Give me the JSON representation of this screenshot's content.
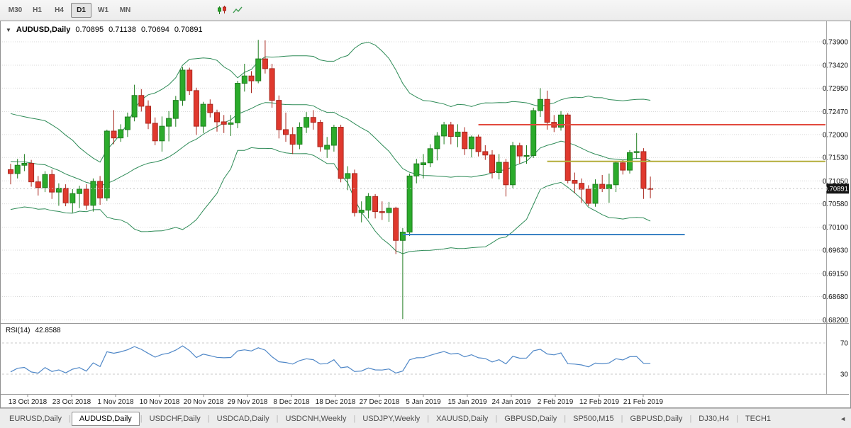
{
  "icons": {
    "collapse": "▼",
    "tab_scroll_left": "◄"
  },
  "toolbar": {
    "timeframes": [
      {
        "label": "M30",
        "active": false
      },
      {
        "label": "H1",
        "active": false
      },
      {
        "label": "H4",
        "active": false
      },
      {
        "label": "D1",
        "active": true
      },
      {
        "label": "W1",
        "active": false
      },
      {
        "label": "MN",
        "active": false
      }
    ],
    "icon_names": [
      "candlestick-chart-icon",
      "indicators-icon"
    ]
  },
  "chart": {
    "title": {
      "symbol": "AUDUSD,Daily",
      "o": "0.70895",
      "h": "0.71138",
      "l": "0.70694",
      "c": "0.70891"
    },
    "price_axis": {
      "labels": [
        "0.73900",
        "0.73420",
        "0.72950",
        "0.72470",
        "0.72000",
        "0.71530",
        "0.71050",
        "0.70580",
        "0.70100",
        "0.69630",
        "0.69150",
        "0.68680",
        "0.68200"
      ],
      "top": 0.739,
      "bottom": 0.682,
      "badge": "0.70891",
      "badge_price": 0.70891
    },
    "time_axis": {
      "labels": [
        "13 Oct 2018",
        "23 Oct 2018",
        "1 Nov 2018",
        "10 Nov 2018",
        "20 Nov 2018",
        "29 Nov 2018",
        "8 Dec 2018",
        "18 Dec 2018",
        "27 Dec 2018",
        "5 Jan 2019",
        "15 Jan 2019",
        "24 Jan 2019",
        "2 Feb 2019",
        "12 Feb 2019",
        "21 Feb 2019"
      ]
    },
    "lines": [
      {
        "name": "resistance-line-red",
        "color": "#e2493d",
        "price": 0.722,
        "from_bar": 68,
        "to_bar": null,
        "width": 2
      },
      {
        "name": "level-line-yellow",
        "color": "#b4ae3a",
        "price": 0.7145,
        "from_bar": 78,
        "to_bar": null,
        "width": 2
      },
      {
        "name": "support-line-blue",
        "color": "#3b82c4",
        "price": 0.6995,
        "from_bar": 57,
        "to_bar": 98,
        "width": 2
      }
    ]
  },
  "rsi": {
    "name": "RSI(14)",
    "value": "42.8588",
    "color": "#4f87c7",
    "scale": {
      "min": 10,
      "max": 90
    },
    "levels": [
      {
        "label": "70",
        "value": 70
      },
      {
        "label": "30",
        "value": 30
      }
    ]
  },
  "tabs": {
    "items": [
      {
        "label": "EURUSD,Daily",
        "active": false
      },
      {
        "label": "AUDUSD,Daily",
        "active": true
      },
      {
        "label": "USDCHF,Daily",
        "active": false
      },
      {
        "label": "USDCAD,Daily",
        "active": false
      },
      {
        "label": "USDCNH,Weekly",
        "active": false
      },
      {
        "label": "USDJPY,Weekly",
        "active": false
      },
      {
        "label": "XAUUSD,Daily",
        "active": false
      },
      {
        "label": "GBPUSD,Daily",
        "active": false
      },
      {
        "label": "SP500,M15",
        "active": false
      },
      {
        "label": "GBPUSD,Daily",
        "active": false
      },
      {
        "label": "DJ30,H4",
        "active": false
      },
      {
        "label": "TECH1",
        "active": false
      }
    ]
  },
  "chart_data": {
    "type": "candlestick",
    "symbol": "AUDUSD",
    "timeframe": "Daily",
    "title": "AUDUSD,Daily 0.70895 0.71138 0.70694 0.70891",
    "ylim": [
      0.682,
      0.739
    ],
    "grid": true,
    "colors": {
      "up": "#2bab2b",
      "up_border": "#1f7d1f",
      "down": "#e0392e",
      "down_border": "#a8271e",
      "bands": "#2e8b57",
      "grid": "#dadada"
    },
    "indicators": [
      {
        "type": "bollinger_bands",
        "period": 20,
        "deviation": 2,
        "color": "#2e8b57"
      },
      {
        "type": "rsi",
        "period": 14,
        "value_shown": 42.8588,
        "color": "#4f87c7",
        "levels": [
          70,
          30
        ]
      }
    ],
    "indicator_warmup_closes": [
      0.7205,
      0.7198,
      0.721,
      0.7188,
      0.7196,
      0.718,
      0.7165,
      0.715,
      0.7108,
      0.7075,
      0.706,
      0.7088,
      0.7105,
      0.7122
    ],
    "ohlc": [
      [
        0.7128,
        0.714,
        0.7098,
        0.712
      ],
      [
        0.712,
        0.715,
        0.711,
        0.7137
      ],
      [
        0.7137,
        0.716,
        0.7125,
        0.7141
      ],
      [
        0.7141,
        0.7148,
        0.7093,
        0.7103
      ],
      [
        0.7103,
        0.7115,
        0.7075,
        0.7091
      ],
      [
        0.7091,
        0.7125,
        0.7082,
        0.7118
      ],
      [
        0.7118,
        0.7128,
        0.7068,
        0.7082
      ],
      [
        0.7082,
        0.71,
        0.7054,
        0.709
      ],
      [
        0.709,
        0.7098,
        0.7053,
        0.706
      ],
      [
        0.706,
        0.7088,
        0.704,
        0.7079
      ],
      [
        0.7079,
        0.7095,
        0.7049,
        0.7088
      ],
      [
        0.7088,
        0.7098,
        0.7046,
        0.7055
      ],
      [
        0.7055,
        0.711,
        0.7042,
        0.7104
      ],
      [
        0.7104,
        0.7115,
        0.7056,
        0.707
      ],
      [
        0.707,
        0.721,
        0.7064,
        0.7207
      ],
      [
        0.7207,
        0.725,
        0.718,
        0.7193
      ],
      [
        0.7193,
        0.7221,
        0.7185,
        0.721
      ],
      [
        0.721,
        0.7245,
        0.7195,
        0.7236
      ],
      [
        0.7236,
        0.7302,
        0.7227,
        0.728
      ],
      [
        0.728,
        0.7293,
        0.7247,
        0.7258
      ],
      [
        0.7258,
        0.727,
        0.7211,
        0.7223
      ],
      [
        0.7223,
        0.7235,
        0.7178,
        0.7187
      ],
      [
        0.7187,
        0.7237,
        0.7165,
        0.7217
      ],
      [
        0.7217,
        0.7248,
        0.7186,
        0.7233
      ],
      [
        0.7233,
        0.7279,
        0.7216,
        0.727
      ],
      [
        0.727,
        0.7338,
        0.7259,
        0.7332
      ],
      [
        0.7332,
        0.7337,
        0.7281,
        0.729
      ],
      [
        0.729,
        0.7296,
        0.7199,
        0.7217
      ],
      [
        0.7217,
        0.7267,
        0.7203,
        0.7262
      ],
      [
        0.7262,
        0.7272,
        0.7235,
        0.7245
      ],
      [
        0.7245,
        0.7251,
        0.7206,
        0.7226
      ],
      [
        0.7226,
        0.724,
        0.7203,
        0.7221
      ],
      [
        0.7221,
        0.724,
        0.7197,
        0.7224
      ],
      [
        0.7224,
        0.731,
        0.7213,
        0.7305
      ],
      [
        0.7305,
        0.7345,
        0.7288,
        0.732
      ],
      [
        0.732,
        0.733,
        0.7285,
        0.731
      ],
      [
        0.731,
        0.7394,
        0.7305,
        0.7355
      ],
      [
        0.7355,
        0.7393,
        0.7325,
        0.7335
      ],
      [
        0.7335,
        0.7345,
        0.7255,
        0.727
      ],
      [
        0.727,
        0.728,
        0.7192,
        0.721
      ],
      [
        0.721,
        0.7245,
        0.7185,
        0.72
      ],
      [
        0.72,
        0.7215,
        0.716,
        0.718
      ],
      [
        0.718,
        0.7225,
        0.717,
        0.7215
      ],
      [
        0.7215,
        0.7246,
        0.7203,
        0.7235
      ],
      [
        0.7235,
        0.725,
        0.721,
        0.7225
      ],
      [
        0.7225,
        0.723,
        0.7165,
        0.7175
      ],
      [
        0.717,
        0.7195,
        0.7152,
        0.7178
      ],
      [
        0.7178,
        0.722,
        0.7165,
        0.7215
      ],
      [
        0.7215,
        0.722,
        0.7102,
        0.711
      ],
      [
        0.711,
        0.7135,
        0.7086,
        0.712
      ],
      [
        0.712,
        0.7128,
        0.7032,
        0.704
      ],
      [
        0.704,
        0.7063,
        0.702,
        0.7045
      ],
      [
        0.7045,
        0.708,
        0.7028,
        0.7073
      ],
      [
        0.7073,
        0.7078,
        0.7028,
        0.7042
      ],
      [
        0.7042,
        0.7063,
        0.7025,
        0.704
      ],
      [
        0.704,
        0.7062,
        0.7021,
        0.7049
      ],
      [
        0.7049,
        0.7052,
        0.6955,
        0.6983
      ],
      [
        0.6983,
        0.7008,
        0.6822,
        0.7
      ],
      [
        0.7,
        0.712,
        0.6992,
        0.7115
      ],
      [
        0.7115,
        0.715,
        0.71,
        0.714
      ],
      [
        0.7138,
        0.716,
        0.711,
        0.7142
      ],
      [
        0.7142,
        0.718,
        0.7133,
        0.7171
      ],
      [
        0.7171,
        0.7205,
        0.7147,
        0.7197
      ],
      [
        0.7197,
        0.7226,
        0.718,
        0.722
      ],
      [
        0.722,
        0.7226,
        0.718,
        0.7196
      ],
      [
        0.7196,
        0.7221,
        0.7174,
        0.7205
      ],
      [
        0.7205,
        0.7215,
        0.7158,
        0.7171
      ],
      [
        0.7171,
        0.7198,
        0.7153,
        0.7195
      ],
      [
        0.7195,
        0.72,
        0.7155,
        0.7165
      ],
      [
        0.7165,
        0.7178,
        0.7148,
        0.7158
      ],
      [
        0.7158,
        0.7168,
        0.711,
        0.7122
      ],
      [
        0.7122,
        0.716,
        0.7108,
        0.7143
      ],
      [
        0.7143,
        0.715,
        0.7073,
        0.7097
      ],
      [
        0.7097,
        0.7185,
        0.709,
        0.7177
      ],
      [
        0.7177,
        0.7183,
        0.714,
        0.7156
      ],
      [
        0.7156,
        0.7178,
        0.714,
        0.7157
      ],
      [
        0.7157,
        0.7255,
        0.7152,
        0.7249
      ],
      [
        0.7249,
        0.7295,
        0.7236,
        0.7272
      ],
      [
        0.7272,
        0.729,
        0.721,
        0.7225
      ],
      [
        0.7225,
        0.724,
        0.7205,
        0.7215
      ],
      [
        0.7215,
        0.7248,
        0.7208,
        0.724
      ],
      [
        0.724,
        0.7244,
        0.71,
        0.7106
      ],
      [
        0.7106,
        0.7122,
        0.708,
        0.71
      ],
      [
        0.71,
        0.711,
        0.706,
        0.7088
      ],
      [
        0.7088,
        0.7096,
        0.7053,
        0.7059
      ],
      [
        0.7059,
        0.7108,
        0.7052,
        0.7098
      ],
      [
        0.7098,
        0.7117,
        0.7082,
        0.7089
      ],
      [
        0.7089,
        0.712,
        0.706,
        0.7097
      ],
      [
        0.7097,
        0.7145,
        0.7082,
        0.7142
      ],
      [
        0.7142,
        0.7148,
        0.7118,
        0.7127
      ],
      [
        0.7127,
        0.7168,
        0.712,
        0.7163
      ],
      [
        0.7163,
        0.7203,
        0.715,
        0.7165
      ],
      [
        0.7165,
        0.7172,
        0.7068,
        0.7089
      ],
      [
        0.70895,
        0.71138,
        0.70694,
        0.70891
      ]
    ]
  }
}
